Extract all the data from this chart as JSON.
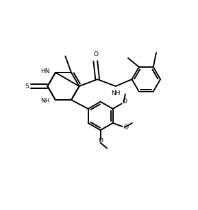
{
  "bg_color": "#ffffff",
  "line_color": "#000000",
  "line_width": 1.4,
  "font_size": 6.5,
  "figsize": [
    2.89,
    3.07
  ],
  "dpi": 100,
  "xlim": [
    0,
    10
  ],
  "ylim": [
    0,
    10.5
  ]
}
